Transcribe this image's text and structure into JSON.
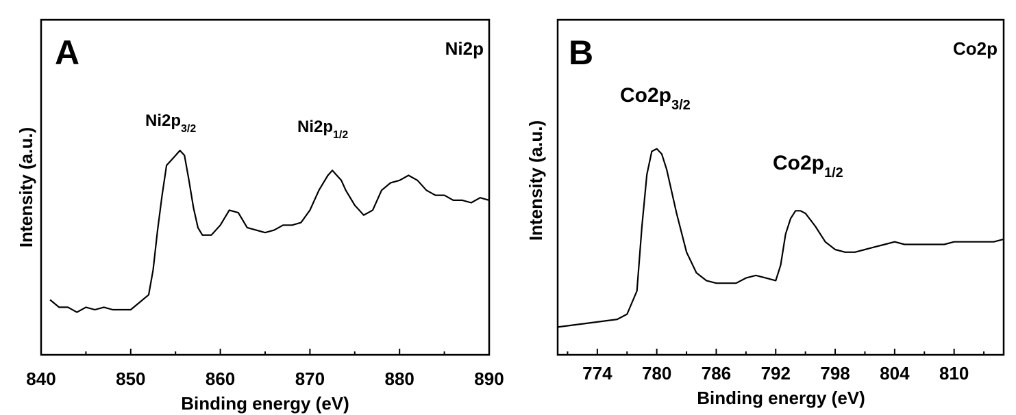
{
  "chart_data": [
    {
      "type": "line",
      "panel_letter": "A",
      "title": "Ni2p",
      "xlabel": "Binding energy (eV)",
      "ylabel": "Intensity (a.u.)",
      "xlim": [
        840,
        890
      ],
      "ylim": [
        0,
        100
      ],
      "xticks": [
        840,
        850,
        860,
        870,
        880,
        890
      ],
      "minor_ticks": true,
      "y_tick_labels": false,
      "grid": false,
      "annotations": [
        {
          "text": "Ni2p",
          "sub": "3/2",
          "x": 855.3,
          "y": 81
        },
        {
          "text": "Ni2p",
          "sub": "1/2",
          "x": 872.3,
          "y": 81
        }
      ],
      "x": [
        841,
        842,
        843,
        844,
        845,
        846,
        847,
        848,
        849,
        850,
        851,
        852,
        852.5,
        853,
        853.5,
        854,
        854.5,
        855,
        855.5,
        856,
        856.5,
        857,
        857.5,
        858,
        859,
        860,
        861,
        862,
        863,
        864,
        865,
        866,
        867,
        868,
        869,
        870,
        870.5,
        871,
        871.5,
        872,
        872.5,
        873,
        873.5,
        874,
        875,
        876,
        877,
        878,
        879,
        880,
        881,
        882,
        883,
        884,
        885,
        886,
        887,
        888,
        889,
        890
      ],
      "values": [
        18,
        15,
        15,
        13,
        15,
        14,
        15,
        14,
        14,
        14,
        17,
        20,
        30,
        46,
        60,
        72,
        74,
        76,
        78,
        76,
        66,
        55,
        47,
        44,
        44,
        48,
        54,
        53,
        47,
        46,
        45,
        46,
        48,
        48,
        49,
        54,
        58,
        62,
        65,
        68,
        70,
        68,
        66,
        62,
        56,
        52,
        54,
        62,
        65,
        66,
        68,
        66,
        62,
        60,
        60,
        58,
        58,
        57,
        59,
        58
      ]
    },
    {
      "type": "line",
      "panel_letter": "B",
      "title": "Co2p",
      "xlabel": "Binding energy (eV)",
      "ylabel": "Intensity (a.u.)",
      "xlim": [
        770,
        815
      ],
      "ylim": [
        0,
        100
      ],
      "xticks": [
        774,
        780,
        786,
        792,
        798,
        804,
        810
      ],
      "minor_ticks": true,
      "y_tick_labels": false,
      "grid": false,
      "annotations": [
        {
          "text": "Co2p",
          "sub": "3/2",
          "x": 780.1,
          "y": 91
        },
        {
          "text": "Co2p",
          "sub": "1/2",
          "x": 795.5,
          "y": 67
        }
      ],
      "x": [
        770,
        772,
        774,
        776,
        777,
        778,
        778.5,
        779,
        779.5,
        780,
        780.5,
        781,
        782,
        783,
        784,
        785,
        786,
        787,
        788,
        789,
        790,
        791,
        792,
        792.5,
        793,
        793.5,
        794,
        794.5,
        795,
        796,
        797,
        798,
        799,
        800,
        801,
        802,
        803,
        804,
        805,
        806,
        807,
        808,
        809,
        810,
        811,
        812,
        813,
        814,
        815
      ],
      "values": [
        11,
        12,
        13,
        14,
        16,
        25,
        50,
        70,
        79,
        80,
        78,
        72,
        55,
        40,
        32,
        29,
        28,
        28,
        28,
        30,
        31,
        30,
        29,
        35,
        47,
        53,
        56,
        56,
        55,
        50,
        44,
        41,
        40,
        40,
        41,
        42,
        43,
        44,
        43,
        43,
        43,
        43,
        43,
        44,
        44,
        44,
        44,
        44,
        45
      ]
    }
  ]
}
